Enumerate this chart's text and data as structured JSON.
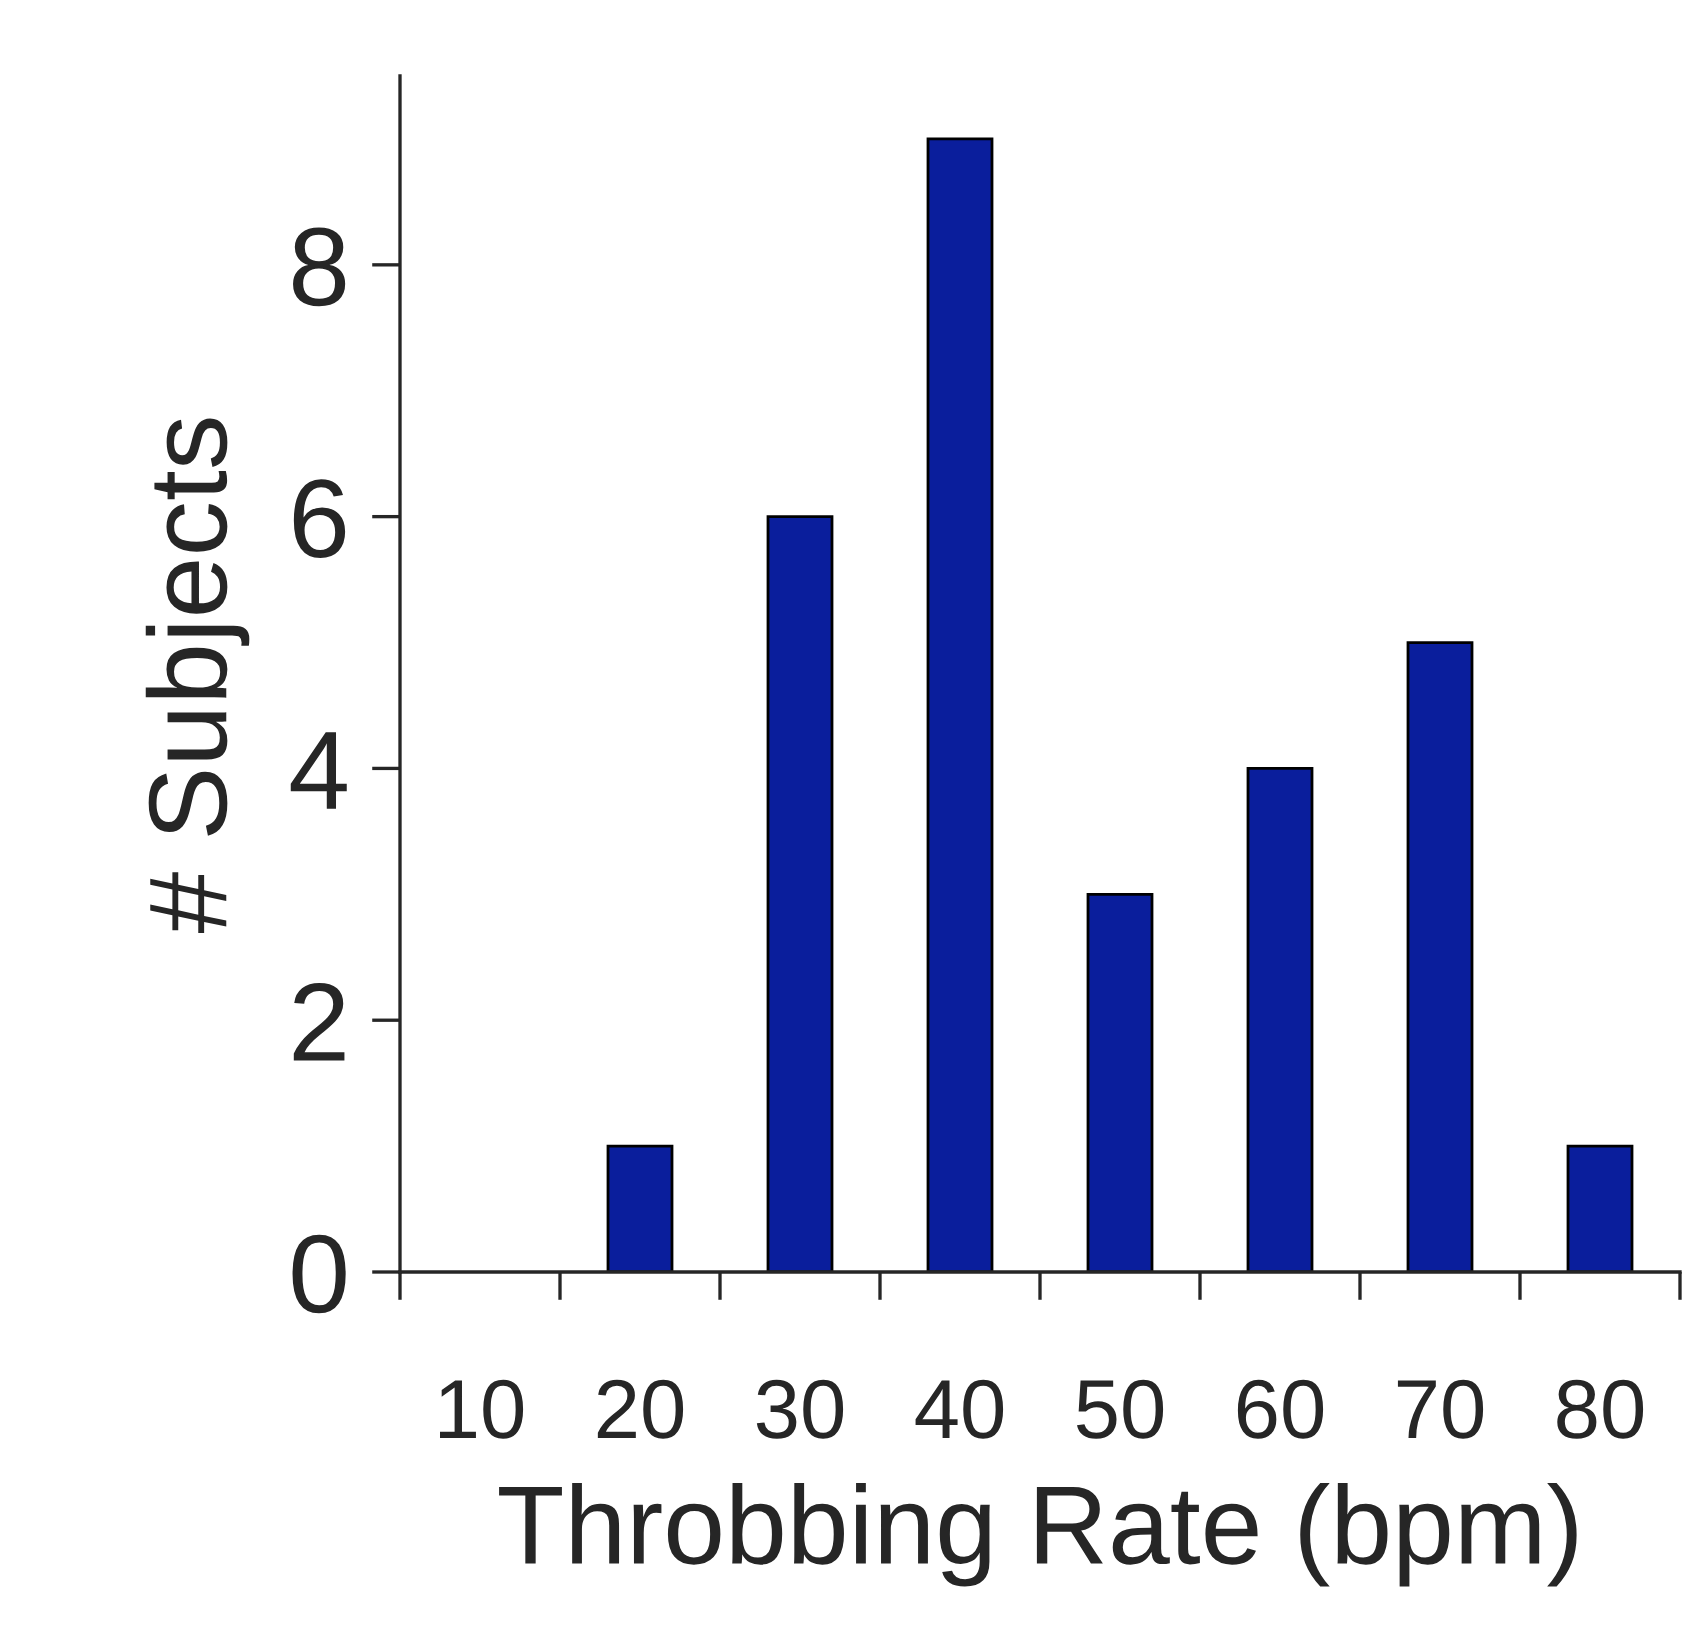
{
  "chart_data": {
    "type": "bar",
    "xlabel": "Throbbing Rate (bpm)",
    "ylabel": "# Subjects",
    "categories": [
      "10",
      "20",
      "30",
      "40",
      "50",
      "60",
      "70",
      "80"
    ],
    "values": [
      0,
      1,
      6,
      9,
      3,
      4,
      5,
      1
    ],
    "color": "#0a1e9c",
    "ylim": [
      0,
      9.5
    ],
    "yticks": [
      0,
      2,
      4,
      6,
      8
    ],
    "grid": false,
    "legend": false
  }
}
